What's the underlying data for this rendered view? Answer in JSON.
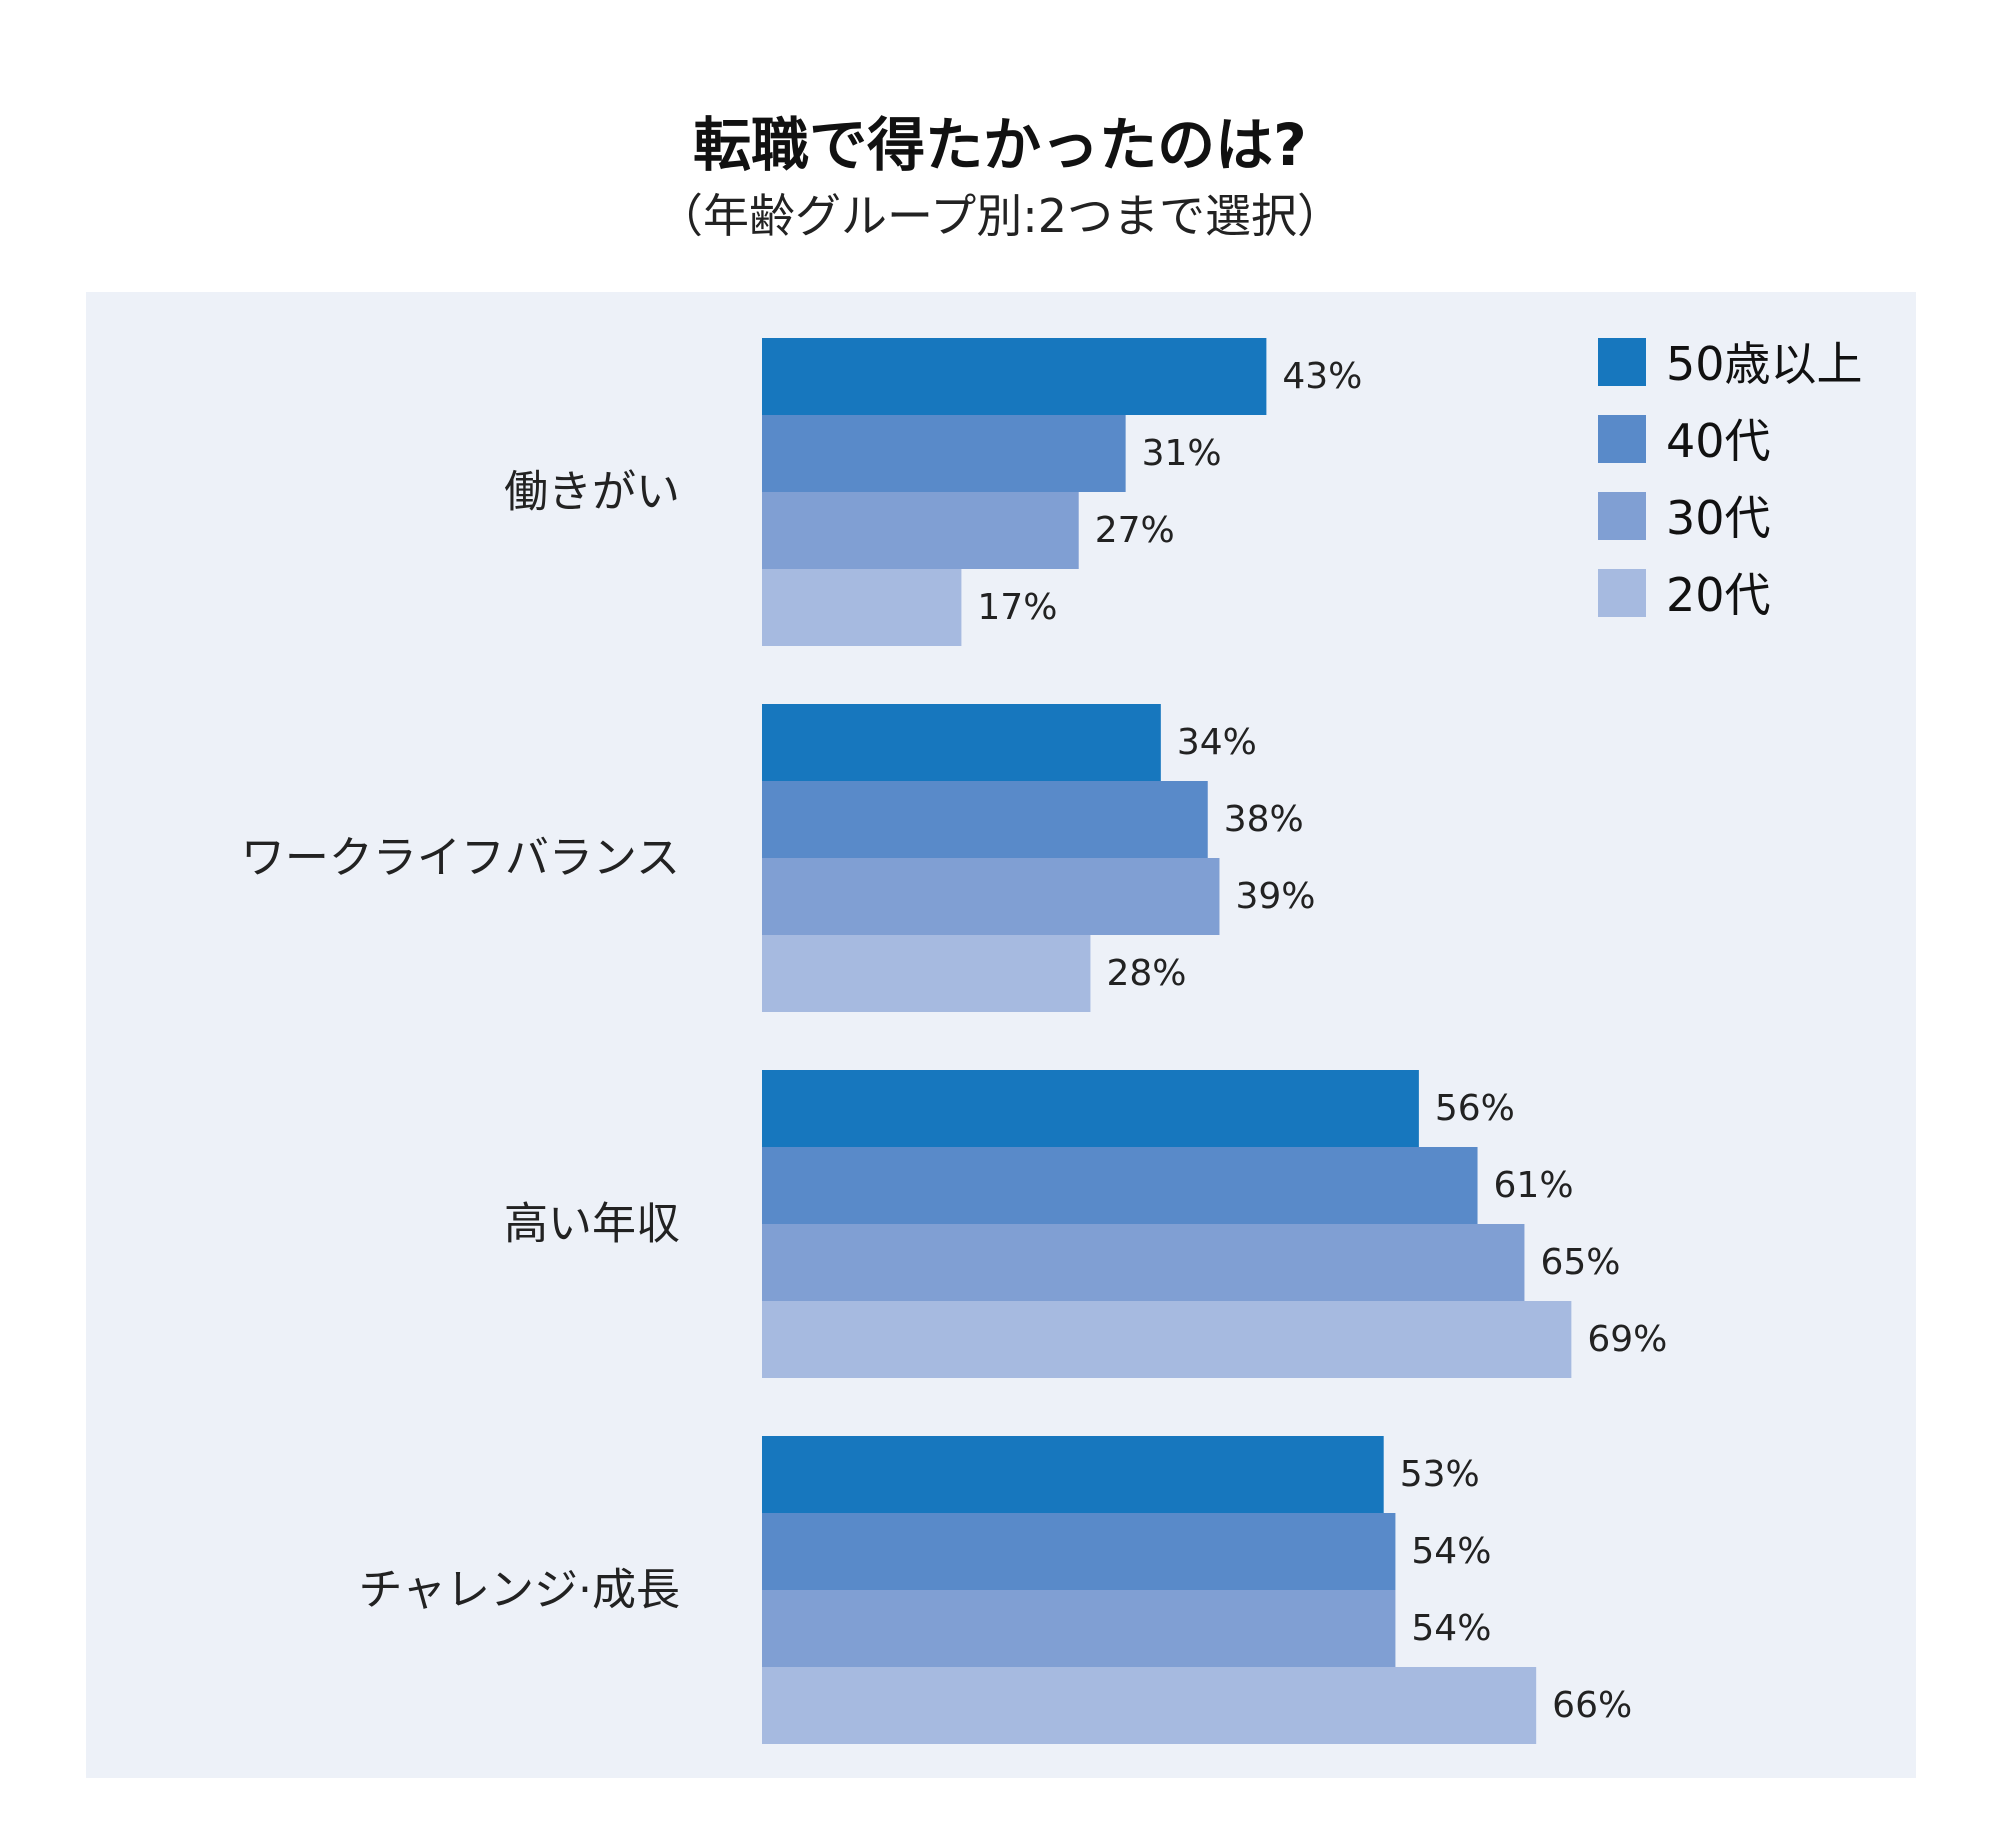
{
  "chart_data": {
    "type": "bar",
    "orientation": "horizontal",
    "title": "転職で得たかったのは?",
    "subtitle": "（年齢グループ別:2つまで選択）",
    "categories": [
      "働きがい",
      "ワークライフバランス",
      "高い年収",
      "チャレンジ·成長"
    ],
    "series": [
      {
        "name": "50歳以上",
        "color": "#1777be",
        "values": [
          43,
          34,
          56,
          53
        ],
        "labels": [
          "43%",
          "34%",
          "56%",
          "53%"
        ]
      },
      {
        "name": "40代",
        "color": "#598ac9",
        "values": [
          31,
          38,
          61,
          54
        ],
        "labels": [
          "31%",
          "38%",
          "61%",
          "54%"
        ]
      },
      {
        "name": "30代",
        "color": "#809fd3",
        "values": [
          27,
          39,
          65,
          54
        ],
        "labels": [
          "27%",
          "39%",
          "65%",
          "54%"
        ]
      },
      {
        "name": "20代",
        "color": "#a6bae0",
        "values": [
          17,
          28,
          69,
          66
        ],
        "labels": [
          "17%",
          "28%",
          "69%",
          "66%"
        ]
      }
    ],
    "value_unit": "%",
    "xlim": [
      0,
      100
    ],
    "grid": false,
    "legend_position": "top-right",
    "background_color": "#edf1f8"
  }
}
